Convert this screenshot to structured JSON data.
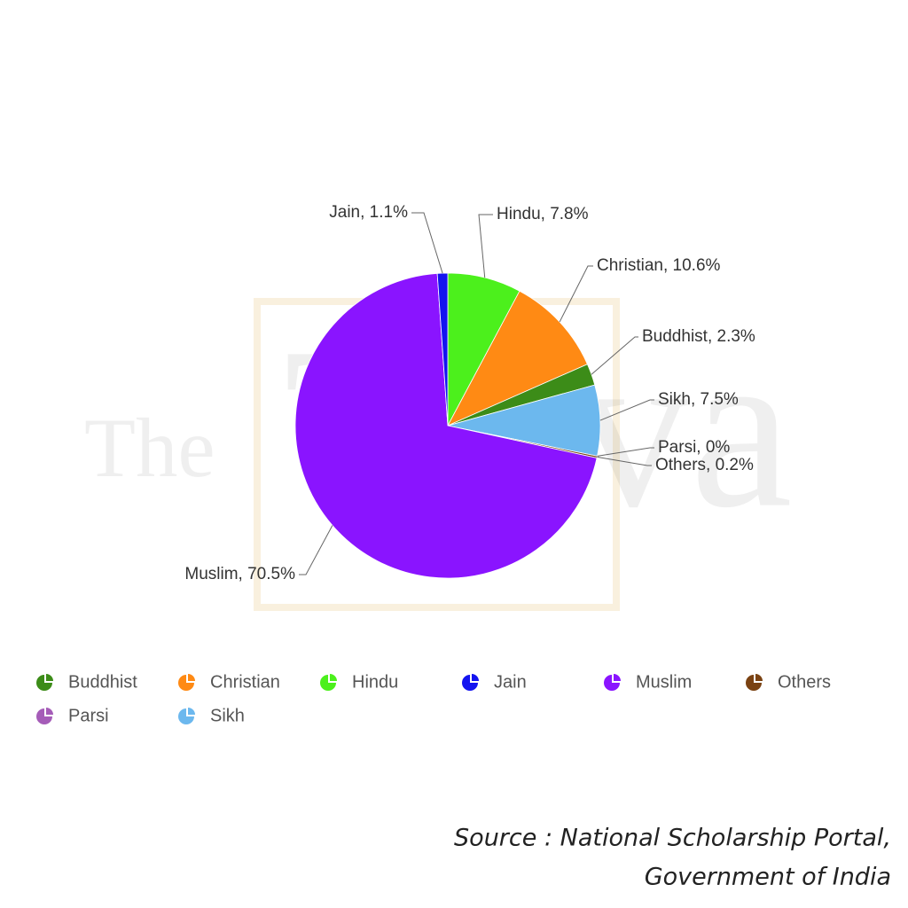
{
  "chart_data": {
    "type": "pie",
    "categories": [
      "Hindu",
      "Christian",
      "Buddhist",
      "Sikh",
      "Parsi",
      "Others",
      "Muslim",
      "Jain"
    ],
    "values": [
      7.8,
      10.6,
      2.3,
      7.5,
      0,
      0.2,
      70.5,
      1.1
    ],
    "value_labels": [
      "Hindu, 7.8%",
      "Christian, 10.6%",
      "Buddhist, 2.3%",
      "Sikh, 7.5%",
      "Parsi, 0%",
      "Others, 0.2%",
      "Muslim, 70.5%",
      "Jain, 1.1%"
    ],
    "colors": [
      "#4cf01c",
      "#ff8a14",
      "#3c8c18",
      "#6cb8ee",
      "#a55cb8",
      "#7a4212",
      "#8a14ff",
      "#1414f0"
    ],
    "legend": "bottom"
  },
  "watermark": [
    "The",
    "Tatva"
  ],
  "source": [
    "Source : National Scholarship Portal,",
    "Government of India"
  ]
}
